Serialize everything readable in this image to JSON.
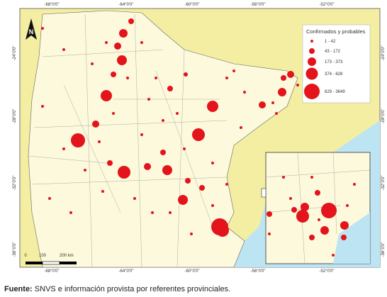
{
  "map": {
    "top_labels": [
      "-68°0'0\"",
      "-64°0'0\"",
      "-60°0'0\"",
      "-56°0'0\"",
      "-52°0'0\""
    ],
    "bottom_labels": [
      "-68°0'0\"",
      "-64°0'0\"",
      "-60°0'0\"",
      "-56°0'0\"",
      "-52°0'0\""
    ],
    "left_labels": [
      "-24°0'0\"",
      "-28°0'0\"",
      "-32°0'0\"",
      "-36°0'0\""
    ],
    "right_labels": [
      "-24°0'0\"",
      "-28°0'0\"",
      "-32°0'0\"",
      "-36°0'0\""
    ],
    "north": "N",
    "legend": {
      "title": "Confirmados y probables",
      "entries": [
        "1 - 42",
        "43 - 172",
        "173 - 373",
        "374 - 628",
        "629 - 3649"
      ]
    },
    "scale": [
      "0",
      "100",
      "200 km"
    ]
  },
  "caption": {
    "label": "Fuente:",
    "text": "SNVS e información provista por referentes provinciales."
  }
}
